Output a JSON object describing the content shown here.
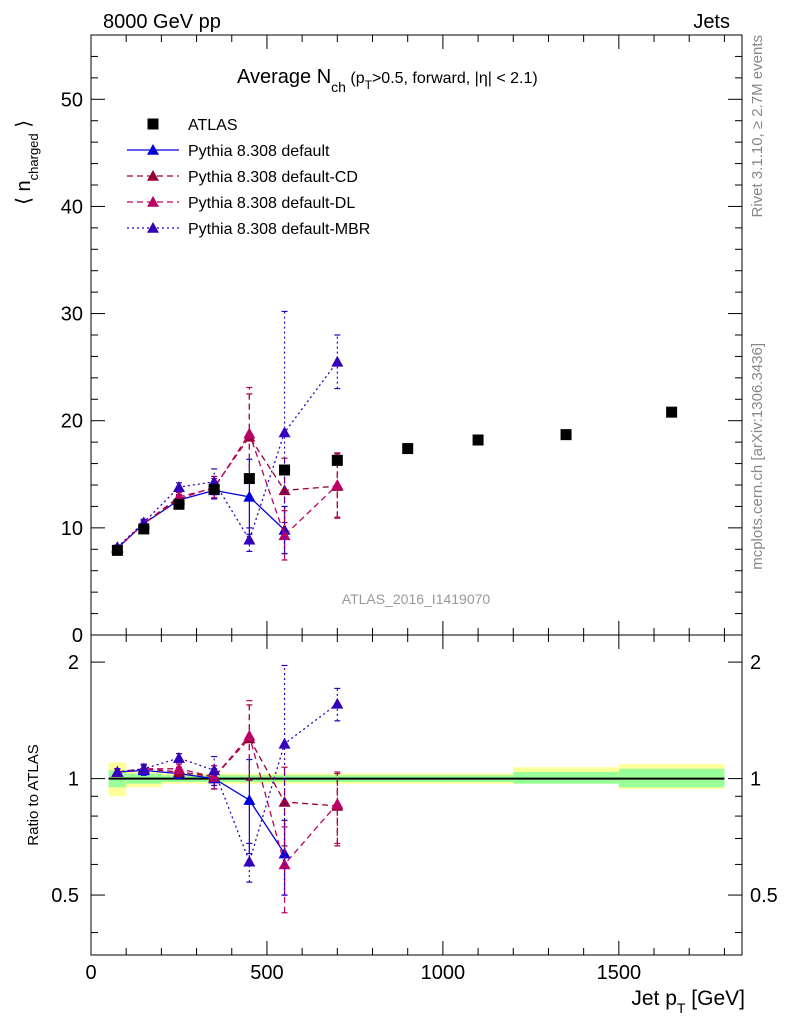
{
  "header": {
    "left": "8000 GeV pp",
    "right": "Jets"
  },
  "side_texts": {
    "rivet": "Rivet 3.1.10, ≥ 2.7M events",
    "mcplots": "mcplots.cern.ch [arXiv:1306.3436]"
  },
  "analysis_id": "ATLAS_2016_I1419070",
  "chart_data": [
    {
      "type": "scatter",
      "panel": "main",
      "title": "Average N_ch (p_T>0.5, forward, |η| < 2.1)",
      "title_parts": {
        "main": "Average N",
        "sub": "ch",
        "rest1": " (p",
        "sub2": "T",
        "rest2": ">0.5, forward, |η| < 2.1)"
      },
      "ylabel": "⟨ n_charged ⟩",
      "ylabel_parts": {
        "open": "⟨ n",
        "sub": "charged",
        "close": " ⟩"
      },
      "xlim": [
        0,
        1850
      ],
      "ylim": [
        0,
        56
      ],
      "yticks": [
        0,
        10,
        20,
        30,
        40,
        50
      ],
      "legend_position": "top-left",
      "series": [
        {
          "name": "ATLAS",
          "style": "marker-only",
          "marker": "square",
          "color": "#000000",
          "x": [
            75,
            150,
            250,
            350,
            450,
            550,
            700,
            900,
            1100,
            1350,
            1650
          ],
          "y": [
            7.9,
            9.9,
            12.2,
            13.6,
            14.6,
            15.4,
            16.3,
            17.4,
            18.2,
            18.7,
            20.8
          ]
        },
        {
          "name": "Pythia 8.308 default",
          "style": "solid",
          "marker": "triangle",
          "color": "#0000dd",
          "x": [
            75,
            150,
            250,
            350,
            450,
            550
          ],
          "y": [
            8.1,
            10.4,
            12.6,
            13.5,
            12.9,
            9.8
          ],
          "err_low": [
            0.2,
            0.3,
            0.4,
            0.8,
            3.5,
            2.2
          ],
          "err_high": [
            0.2,
            0.3,
            0.4,
            0.8,
            3.5,
            2.2
          ]
        },
        {
          "name": "Pythia 8.308 default-CD",
          "style": "dashed",
          "marker": "triangle",
          "color": "#990033",
          "x": [
            75,
            150,
            250,
            350,
            450,
            550,
            700
          ],
          "y": [
            8.1,
            10.4,
            12.7,
            13.8,
            18.5,
            13.5,
            13.9
          ],
          "err_low": [
            0.2,
            0.3,
            0.4,
            1.0,
            4.0,
            3.0,
            3.0
          ],
          "err_high": [
            0.2,
            0.3,
            0.4,
            1.0,
            4.0,
            3.0,
            3.0
          ]
        },
        {
          "name": "Pythia 8.308 default-DL",
          "style": "dashed",
          "marker": "triangle",
          "color": "#bb0066",
          "x": [
            75,
            150,
            250,
            350,
            450,
            550,
            700
          ],
          "y": [
            8.1,
            10.4,
            12.9,
            13.7,
            18.8,
            9.3,
            14.0
          ],
          "err_low": [
            0.2,
            0.3,
            0.4,
            0.9,
            4.3,
            2.3,
            3.0
          ],
          "err_high": [
            0.2,
            0.3,
            0.4,
            0.9,
            4.3,
            2.3,
            3.0
          ]
        },
        {
          "name": "Pythia 8.308 default-MBR",
          "style": "dotted",
          "marker": "triangle",
          "color": "#3300bb",
          "x": [
            75,
            150,
            250,
            350,
            450,
            550,
            700
          ],
          "y": [
            8.2,
            10.5,
            13.8,
            14.3,
            8.9,
            18.9,
            25.5
          ],
          "err_low": [
            0.2,
            0.3,
            0.4,
            1.2,
            1.1,
            11.3,
            2.5
          ],
          "err_high": [
            0.2,
            0.3,
            0.4,
            1.2,
            1.1,
            11.3,
            2.5
          ]
        }
      ]
    },
    {
      "type": "scatter",
      "panel": "ratio",
      "ylabel": "Ratio to ATLAS",
      "xlabel": "Jet p_T [GeV]",
      "xlabel_parts": {
        "main": "Jet p",
        "sub": "T",
        "rest": " [GeV]"
      },
      "xlim": [
        0,
        1850
      ],
      "ylim": [
        0.35,
        2.35
      ],
      "yscale": "log",
      "yticks": [
        0.5,
        1,
        2
      ],
      "xticks": [
        0,
        500,
        1000,
        1500
      ],
      "reference_line": 1.0,
      "data_bands": {
        "x_edges": [
          50,
          100,
          200,
          300,
          400,
          500,
          600,
          800,
          1000,
          1200,
          1500,
          1800
        ],
        "inner_low": [
          0.95,
          0.97,
          0.98,
          0.98,
          0.98,
          0.98,
          0.98,
          0.98,
          0.98,
          0.97,
          0.95
        ],
        "inner_high": [
          1.05,
          1.03,
          1.02,
          1.02,
          1.02,
          1.02,
          1.02,
          1.02,
          1.02,
          1.04,
          1.06
        ],
        "outer_low": [
          0.9,
          0.95,
          0.97,
          0.97,
          0.97,
          0.97,
          0.97,
          0.97,
          0.97,
          0.97,
          0.94
        ],
        "outer_high": [
          1.1,
          1.05,
          1.03,
          1.03,
          1.03,
          1.03,
          1.03,
          1.03,
          1.03,
          1.07,
          1.09
        ],
        "inner_color": "#99ff99",
        "outer_color": "#ffff99"
      },
      "series": [
        {
          "name": "Pythia 8.308 default",
          "color": "#0000dd",
          "style": "solid",
          "x": [
            75,
            150,
            250,
            350,
            450,
            550
          ],
          "y": [
            1.04,
            1.05,
            1.03,
            1.0,
            0.88,
            0.64
          ],
          "err_low": [
            0.02,
            0.03,
            0.03,
            0.06,
            0.24,
            0.14
          ],
          "err_high": [
            0.02,
            0.03,
            0.03,
            0.06,
            0.24,
            0.14
          ]
        },
        {
          "name": "Pythia 8.308 default-CD",
          "color": "#990033",
          "style": "dashed",
          "x": [
            75,
            150,
            250,
            350,
            450,
            550,
            700
          ],
          "y": [
            1.04,
            1.06,
            1.04,
            1.01,
            1.27,
            0.87,
            0.85
          ],
          "err_low": [
            0.02,
            0.03,
            0.03,
            0.07,
            0.28,
            0.2,
            0.18
          ],
          "err_high": [
            0.02,
            0.03,
            0.03,
            0.07,
            0.28,
            0.2,
            0.18
          ]
        },
        {
          "name": "Pythia 8.308 default-DL",
          "color": "#bb0066",
          "style": "dashed",
          "x": [
            75,
            150,
            250,
            350,
            450,
            550,
            700
          ],
          "y": [
            1.04,
            1.06,
            1.06,
            1.01,
            1.29,
            0.6,
            0.86
          ],
          "err_low": [
            0.02,
            0.03,
            0.03,
            0.07,
            0.3,
            0.15,
            0.18
          ],
          "err_high": [
            0.02,
            0.03,
            0.03,
            0.07,
            0.3,
            0.15,
            0.18
          ]
        },
        {
          "name": "Pythia 8.308 default-MBR",
          "color": "#3300bb",
          "style": "dotted",
          "x": [
            75,
            150,
            250,
            350,
            450,
            550,
            700
          ],
          "y": [
            1.04,
            1.06,
            1.13,
            1.05,
            0.61,
            1.23,
            1.56
          ],
          "err_low": [
            0.02,
            0.03,
            0.03,
            0.09,
            0.07,
            0.73,
            0.15
          ],
          "err_high": [
            0.02,
            0.03,
            0.03,
            0.09,
            0.07,
            0.73,
            0.15
          ]
        }
      ]
    }
  ]
}
